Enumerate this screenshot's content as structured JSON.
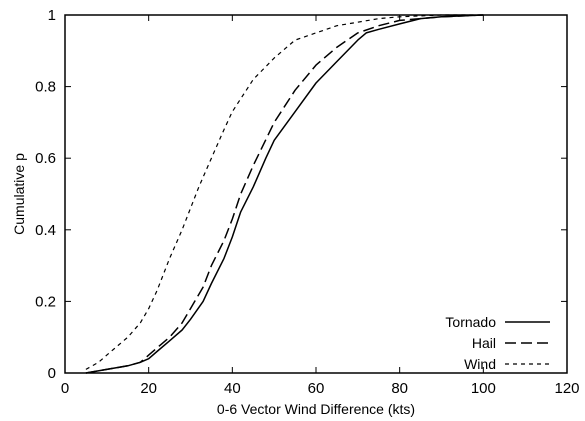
{
  "chart_data": {
    "type": "line",
    "title": "",
    "xlabel": "0-6 Vector Wind Difference (kts)",
    "ylabel": "Cumulative p",
    "xlim": [
      0,
      120
    ],
    "ylim": [
      0,
      1
    ],
    "xticks": [
      0,
      20,
      40,
      60,
      80,
      100,
      120
    ],
    "yticks": [
      0,
      0.2,
      0.4,
      0.6,
      0.8,
      1
    ],
    "xtick_labels": [
      "0",
      "20",
      "40",
      "60",
      "80",
      "100",
      "120"
    ],
    "ytick_labels": [
      "0",
      "0.2",
      "0.4",
      "0.6",
      "0.8",
      "1"
    ],
    "grid": false,
    "legend_position": "bottom-right",
    "series": [
      {
        "name": "Tornado",
        "line_style": "solid",
        "color": "#000000",
        "x": [
          5,
          10,
          15,
          18,
          20,
          22,
          25,
          28,
          30,
          33,
          35,
          38,
          40,
          42,
          45,
          48,
          50,
          55,
          60,
          65,
          70,
          72,
          75,
          80,
          85,
          90,
          100
        ],
        "y": [
          0.0,
          0.01,
          0.02,
          0.03,
          0.04,
          0.06,
          0.09,
          0.12,
          0.15,
          0.2,
          0.25,
          0.32,
          0.38,
          0.45,
          0.52,
          0.6,
          0.65,
          0.73,
          0.81,
          0.87,
          0.93,
          0.95,
          0.96,
          0.975,
          0.99,
          0.995,
          1.0
        ]
      },
      {
        "name": "Hail",
        "line_style": "dashed",
        "color": "#000000",
        "x": [
          5,
          10,
          15,
          18,
          20,
          22,
          25,
          28,
          30,
          33,
          35,
          38,
          40,
          42,
          45,
          50,
          55,
          60,
          65,
          70,
          75,
          80,
          85,
          90,
          100
        ],
        "y": [
          0.0,
          0.01,
          0.02,
          0.03,
          0.05,
          0.07,
          0.1,
          0.14,
          0.18,
          0.24,
          0.3,
          0.37,
          0.43,
          0.5,
          0.58,
          0.7,
          0.79,
          0.86,
          0.91,
          0.95,
          0.97,
          0.985,
          0.99,
          0.995,
          1.0
        ]
      },
      {
        "name": "Wind",
        "line_style": "short-dashed",
        "color": "#000000",
        "x": [
          5,
          8,
          10,
          12,
          15,
          18,
          20,
          22,
          25,
          28,
          30,
          32,
          35,
          38,
          40,
          45,
          50,
          55,
          60,
          65,
          70,
          75,
          80,
          90,
          100
        ],
        "y": [
          0.01,
          0.03,
          0.05,
          0.07,
          0.1,
          0.14,
          0.18,
          0.23,
          0.32,
          0.4,
          0.46,
          0.52,
          0.6,
          0.68,
          0.73,
          0.82,
          0.88,
          0.93,
          0.95,
          0.97,
          0.98,
          0.99,
          0.995,
          1.0,
          1.0
        ]
      }
    ]
  }
}
